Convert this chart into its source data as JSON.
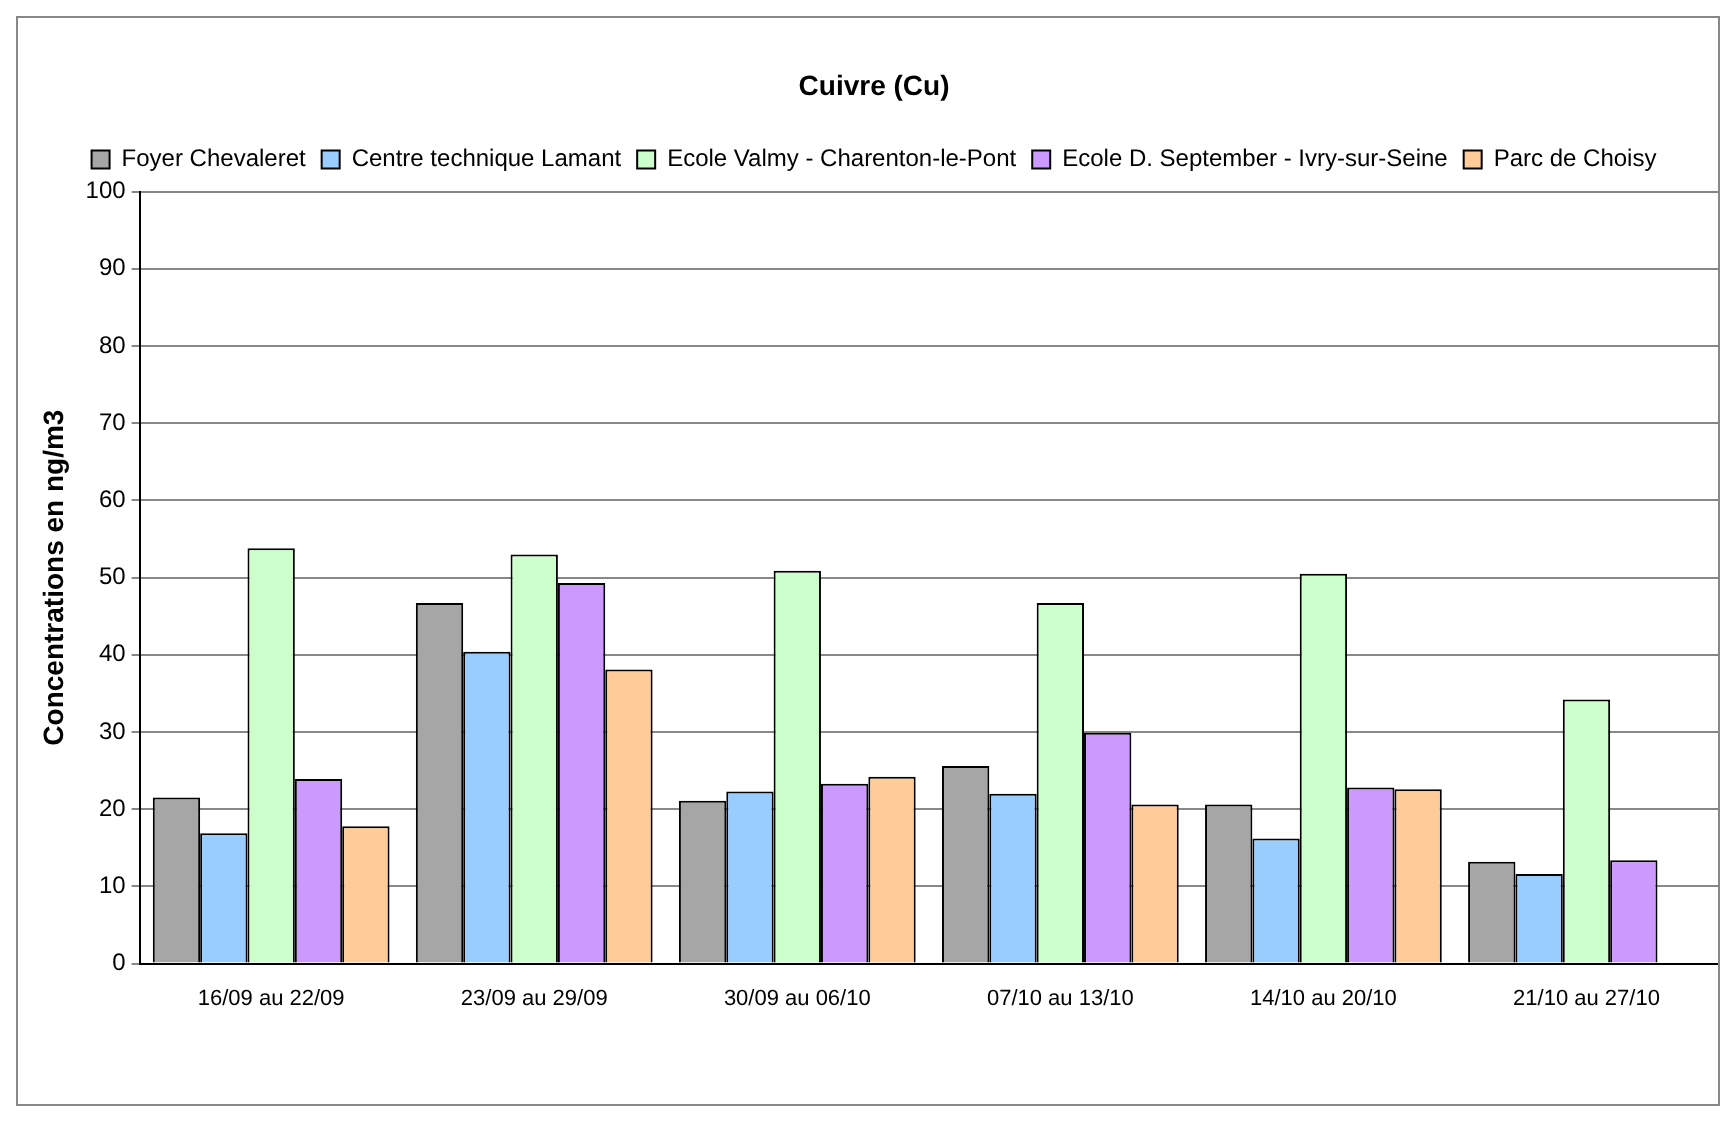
{
  "chart_data": {
    "type": "bar",
    "title": "Cuivre (Cu)",
    "ylabel": "Concentrations en ng/m3",
    "categories": [
      "16/09 au 22/09",
      "23/09 au 29/09",
      "30/09 au 06/10",
      "07/10 au 13/10",
      "14/10 au 20/10",
      "21/10 au 27/10"
    ],
    "series": [
      {
        "name": "Foyer Chevaleret",
        "color": "#a6a6a6",
        "values": [
          21.5,
          46.7,
          21.1,
          25.6,
          20.6,
          13.2
        ]
      },
      {
        "name": "Centre technique Lamant",
        "color": "#99ccff",
        "values": [
          16.9,
          40.4,
          22.3,
          22.0,
          16.2,
          11.6
        ]
      },
      {
        "name": "Ecole Valmy - Charenton-le-Pont",
        "color": "#ccffcc",
        "values": [
          53.8,
          53.0,
          50.9,
          46.7,
          50.5,
          34.2
        ]
      },
      {
        "name": "Ecole D. September - Ivry-sur-Seine",
        "color": "#cc99ff",
        "values": [
          23.9,
          49.3,
          23.3,
          29.9,
          22.8,
          13.4
        ]
      },
      {
        "name": "Parc de Choisy",
        "color": "#ffcc99",
        "values": [
          17.8,
          38.1,
          24.2,
          20.6,
          22.6,
          null
        ]
      }
    ],
    "ylim": [
      0,
      100
    ],
    "yticks": [
      0,
      10,
      20,
      30,
      40,
      50,
      60,
      70,
      80,
      90,
      100
    ],
    "grid": "y",
    "legend": "top"
  }
}
